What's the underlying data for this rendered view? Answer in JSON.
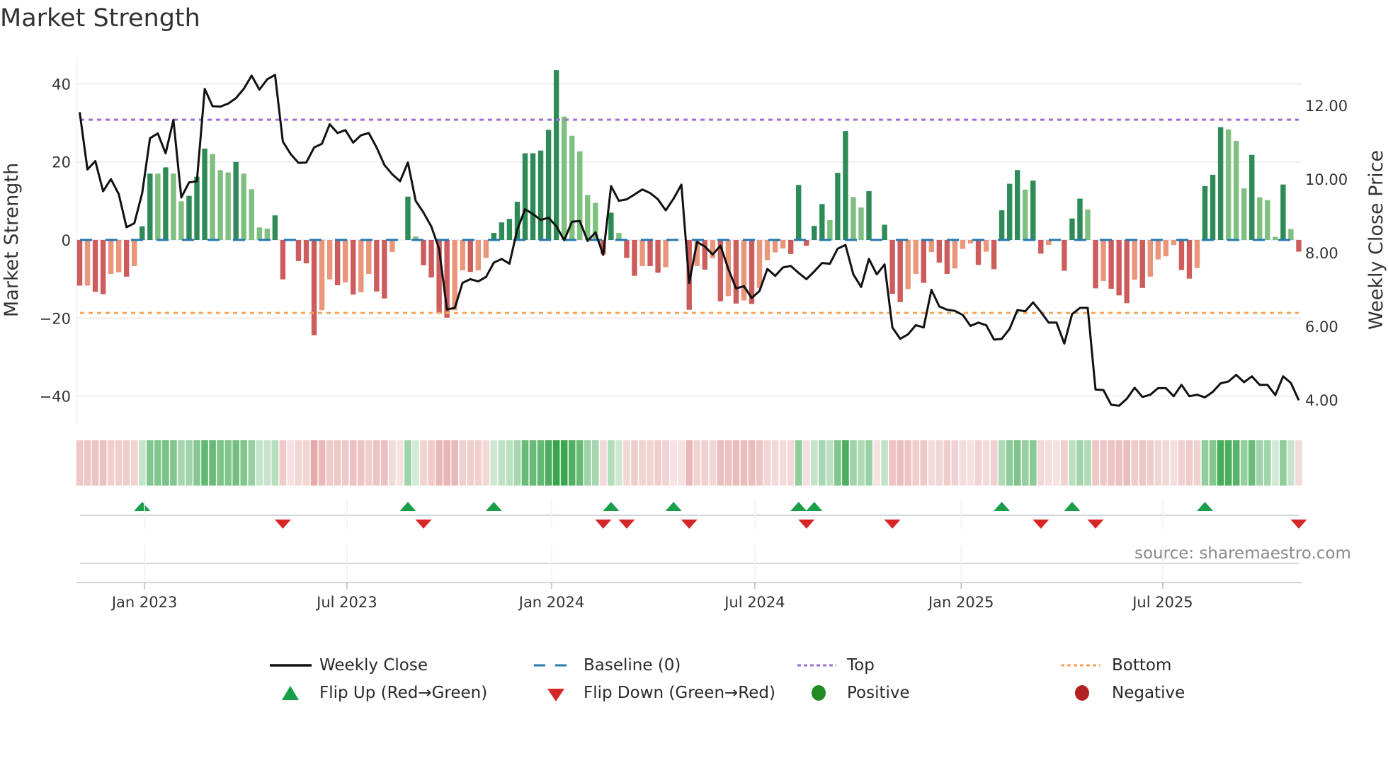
{
  "title": "Market Strength",
  "source": "source: sharemaestro.com",
  "legend": {
    "weekly_close": "Weekly Close",
    "baseline": "Baseline (0)",
    "top": "Top",
    "bottom": "Bottom",
    "flip_up": "Flip Up (Red→Green)",
    "flip_down": "Flip Down (Green→Red)",
    "positive": "Positive",
    "negative": "Negative"
  },
  "colors": {
    "strong_green": "#2e8b57",
    "weak_green": "#7fbf7f",
    "strong_red": "#cd5c5c",
    "weak_red": "#e9967a",
    "line": "#111111",
    "baseline": "#2878b0",
    "top": "#9b6fd6",
    "bottom": "#f2a55a",
    "flip_up": "#1a9e49",
    "flip_down": "#d62728",
    "positive": "#228b22",
    "negative": "#b22222"
  },
  "chart_data": {
    "type": "bar+line",
    "title": "Market Strength",
    "ylabel": "Market Strength",
    "y2label": "Weekly Close Price",
    "ylim": [
      -48,
      45
    ],
    "y2lim": [
      3.3,
      13.2
    ],
    "yticks": [
      40,
      20,
      0,
      -20,
      -40
    ],
    "ytick_labels": [
      "40",
      "20",
      "0",
      "−20",
      "−40"
    ],
    "y2ticks": [
      12,
      10,
      8,
      6,
      4
    ],
    "y2tick_labels": [
      "12.00",
      "10.00",
      "8.00",
      "6.00",
      "4.00"
    ],
    "xticks": [
      {
        "week": 8.3,
        "label": "Jan 2023"
      },
      {
        "week": 34.2,
        "label": "Jul 2023"
      },
      {
        "week": 60.4,
        "label": "Jan 2024"
      },
      {
        "week": 86.4,
        "label": "Jul 2024"
      },
      {
        "week": 112.8,
        "label": "Jan 2025"
      },
      {
        "week": 138.6,
        "label": "Jul 2025"
      }
    ],
    "top_level": 30.8,
    "bottom_level": -18.7,
    "baseline": 0,
    "grid": true,
    "legend_position": "bottom",
    "strength": [
      -11.7,
      -11.7,
      -13.3,
      -13.9,
      -8.7,
      -8.3,
      -9.4,
      -6.7,
      3.5,
      17,
      17,
      18.6,
      17,
      9.9,
      11.3,
      16.2,
      23.4,
      22,
      17.9,
      17.3,
      20,
      17,
      13,
      3.2,
      2.9,
      6.3,
      -10.1,
      0,
      -5.4,
      -6,
      -24.4,
      -18,
      -10.1,
      -11.6,
      -10.9,
      -14,
      -13.4,
      -8.7,
      -13.2,
      -15,
      -3.1,
      0,
      11.1,
      0.9,
      -6.5,
      -9.6,
      -18.8,
      -19.9,
      -18,
      -7.8,
      -8.2,
      -7.8,
      -4.6,
      1.8,
      4.5,
      5.4,
      9.8,
      22.2,
      22.2,
      22.9,
      28.2,
      43.5,
      31.6,
      26.7,
      22.7,
      11.5,
      9.5,
      -3.7,
      7,
      1.8,
      -4.6,
      -9.2,
      -6.7,
      -6.7,
      -8.4,
      -7,
      0,
      0,
      -17.9,
      -6.7,
      -7.6,
      -4.7,
      -15.7,
      -14.4,
      -16.3,
      -15.5,
      -16.4,
      -12.3,
      -5.2,
      -3.2,
      -2.2,
      -3.6,
      14.1,
      -1.5,
      3.6,
      9.2,
      5.1,
      17.2,
      27.9,
      11,
      8.3,
      12.5,
      0,
      3.9,
      -13.8,
      -15.9,
      -12.6,
      -8.7,
      -11,
      -3.1,
      -5.8,
      -8.7,
      -7.3,
      -2.3,
      -0.9,
      -6.4,
      -3,
      -7.5,
      7.6,
      14.4,
      17.9,
      12.9,
      15.2,
      -3.5,
      -1.3,
      0,
      -7.9,
      5.5,
      10.6,
      7.8,
      -12.4,
      -10.5,
      -12.5,
      -14.2,
      -16.2,
      -10.2,
      -12.3,
      -9.4,
      -5,
      -4.2,
      -1.3,
      -7.7,
      -9.9,
      -7.2,
      13.8,
      16.7,
      28.9,
      28.3,
      25.4,
      13.2,
      21.8,
      10.9,
      10.2,
      0.8,
      14.2,
      2.8,
      -3
    ],
    "strength_shade": "DLDDLLDLDDLDLLDDDLLLDLLLLDDLDDDLLDLDLLDDLLDLDDDDLLDLLDDDDDDDDDLLLLLDDLDDLDDLLLDLDLDLDLDLLLLDDDDDLDDLLDLDDDLLDLDDLLLDLDDDDLDDLLDDDLDLDDDLDLLLLDDLDDDLLLDLLLDLD",
    "weekly_close": [
      11.82,
      10.26,
      10.49,
      9.67,
      10.0,
      9.59,
      8.69,
      8.8,
      9.62,
      11.11,
      11.24,
      10.7,
      11.61,
      9.5,
      9.91,
      9.94,
      12.45,
      11.98,
      11.97,
      12.05,
      12.2,
      12.45,
      12.81,
      12.43,
      12.71,
      12.83,
      11.02,
      10.68,
      10.44,
      10.45,
      10.86,
      10.96,
      11.49,
      11.25,
      11.33,
      10.99,
      11.19,
      11.25,
      10.86,
      10.38,
      10.13,
      9.94,
      10.45,
      9.41,
      9.09,
      8.71,
      8.1,
      6.46,
      6.5,
      7.18,
      7.28,
      7.22,
      7.34,
      7.73,
      7.83,
      7.7,
      8.63,
      9.18,
      9.05,
      8.89,
      8.95,
      8.72,
      8.34,
      8.84,
      8.86,
      8.32,
      8.55,
      7.94,
      9.81,
      9.41,
      9.45,
      9.58,
      9.72,
      9.62,
      9.45,
      9.15,
      9.47,
      9.85,
      7.18,
      8.29,
      8.17,
      7.95,
      8.19,
      7.56,
      7.03,
      7.09,
      6.77,
      6.96,
      7.56,
      7.37,
      7.6,
      7.64,
      7.45,
      7.28,
      7.49,
      7.72,
      7.7,
      8.11,
      8.21,
      7.41,
      7.07,
      7.83,
      7.41,
      7.68,
      5.97,
      5.66,
      5.78,
      6.03,
      5.97,
      6.99,
      6.54,
      6.45,
      6.42,
      6.31,
      6.01,
      6.1,
      6.03,
      5.64,
      5.66,
      5.93,
      6.44,
      6.41,
      6.65,
      6.39,
      6.1,
      6.1,
      5.53,
      6.33,
      6.5,
      6.5,
      4.28,
      4.27,
      3.87,
      3.84,
      4.03,
      4.33,
      4.08,
      4.14,
      4.32,
      4.32,
      4.1,
      4.41,
      4.1,
      4.14,
      4.07,
      4.22,
      4.45,
      4.5,
      4.68,
      4.48,
      4.64,
      4.41,
      4.41,
      4.13,
      4.64,
      4.46,
      3.99
    ],
    "flip_up_weeks": [
      8,
      42,
      53,
      68,
      76,
      92,
      94,
      118,
      127,
      144
    ],
    "flip_down_weeks": [
      26,
      44,
      67,
      70,
      78,
      93,
      104,
      123,
      130,
      156
    ]
  }
}
